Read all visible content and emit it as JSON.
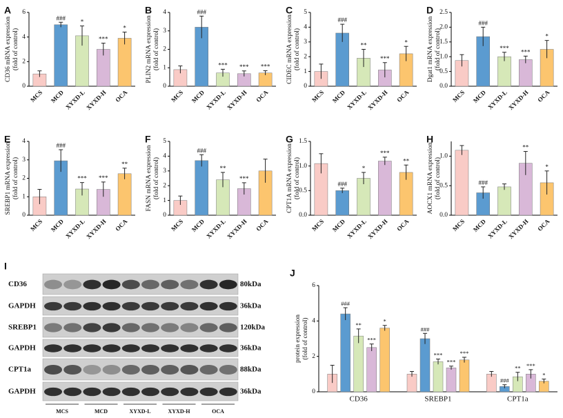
{
  "chart_data": [
    {
      "type": "bar",
      "panel": "A",
      "y_label": [
        "CD36 mRNA expression",
        "(fold of control)"
      ],
      "categories": [
        "MCS",
        "MCD",
        "XYXD-L",
        "XYXD-H",
        "OCA"
      ],
      "colors": [
        "#f9cbc6",
        "#5b9bd0",
        "#d6e8b8",
        "#d9b8d8",
        "#fcc56e"
      ],
      "values": [
        1.0,
        5.0,
        4.1,
        3.0,
        3.9
      ],
      "errors": [
        0.25,
        0.2,
        0.8,
        0.5,
        0.5
      ],
      "significance": [
        null,
        "###",
        "*",
        "***",
        "*"
      ],
      "ylim": [
        0,
        6
      ],
      "yticks": [
        0,
        2,
        4,
        6
      ]
    },
    {
      "type": "bar",
      "panel": "B",
      "y_label": [
        "PLIN2 mRNA expression",
        "(fold of control)"
      ],
      "categories": [
        "MCS",
        "MCD",
        "XYXD-L",
        "XYXD-H",
        "OCA"
      ],
      "colors": [
        "#f9cbc6",
        "#5b9bd0",
        "#d6e8b8",
        "#d9b8d8",
        "#fcc56e"
      ],
      "values": [
        0.9,
        3.2,
        0.72,
        0.68,
        0.72
      ],
      "errors": [
        0.2,
        0.6,
        0.2,
        0.15,
        0.12
      ],
      "significance": [
        null,
        "###",
        "***",
        "***",
        "***"
      ],
      "ylim": [
        0,
        4
      ],
      "yticks": [
        0,
        1,
        2,
        3,
        4
      ]
    },
    {
      "type": "bar",
      "panel": "C",
      "y_label": [
        "CIDEC mRNA expression",
        "(fold of control)"
      ],
      "categories": [
        "MCS",
        "MCD",
        "XYXD-L",
        "XYXD-H",
        "OCA"
      ],
      "colors": [
        "#f9cbc6",
        "#5b9bd0",
        "#d6e8b8",
        "#d9b8d8",
        "#fcc56e"
      ],
      "values": [
        1.0,
        3.6,
        1.9,
        1.1,
        2.2
      ],
      "errors": [
        0.5,
        0.6,
        0.6,
        0.5,
        0.5
      ],
      "significance": [
        null,
        "###",
        "**",
        "***",
        "*"
      ],
      "ylim": [
        0,
        5
      ],
      "yticks": [
        0,
        1,
        2,
        3,
        4,
        5
      ]
    },
    {
      "type": "bar",
      "panel": "D",
      "y_label": [
        "Dgat1 mRNA expression",
        "(fold of control)"
      ],
      "categories": [
        "MCS",
        "MCD",
        "XYXD-L",
        "XYXD-H",
        "OCA"
      ],
      "colors": [
        "#f9cbc6",
        "#5b9bd0",
        "#d6e8b8",
        "#d9b8d8",
        "#fcc56e"
      ],
      "values": [
        0.87,
        1.68,
        1.0,
        0.9,
        1.25
      ],
      "errors": [
        0.2,
        0.32,
        0.15,
        0.12,
        0.3
      ],
      "significance": [
        null,
        "###",
        "***",
        "***",
        "*"
      ],
      "ylim": [
        0,
        2.5
      ],
      "yticks": [
        {
          "value": 0,
          "label": "0.0"
        },
        0.5,
        {
          "value": 1,
          "label": "1.0"
        },
        1.5,
        {
          "value": 2,
          "label": "2.0"
        },
        2.5
      ]
    },
    {
      "type": "bar",
      "panel": "E",
      "y_label": [
        "SREBP1 mRNA expression",
        "(fold of control)"
      ],
      "categories": [
        "MCS",
        "MCD",
        "XYXD-L",
        "XYXD-H",
        "OCA"
      ],
      "colors": [
        "#f9cbc6",
        "#5b9bd0",
        "#d6e8b8",
        "#d9b8d8",
        "#fcc56e"
      ],
      "values": [
        1.0,
        2.95,
        1.42,
        1.4,
        2.25
      ],
      "errors": [
        0.4,
        0.6,
        0.35,
        0.4,
        0.3
      ],
      "significance": [
        null,
        "###",
        "***",
        "***",
        "**"
      ],
      "ylim": [
        0,
        4
      ],
      "yticks": [
        0,
        1,
        2,
        3,
        4
      ]
    },
    {
      "type": "bar",
      "panel": "F",
      "y_label": [
        "FASN mRNA expression",
        "(fold of control)"
      ],
      "categories": [
        "MCS",
        "MCD",
        "XYXD-L",
        "XYXD-H",
        "OCA"
      ],
      "colors": [
        "#f9cbc6",
        "#5b9bd0",
        "#d6e8b8",
        "#d9b8d8",
        "#fcc56e"
      ],
      "values": [
        1.0,
        3.7,
        2.4,
        1.8,
        3.0
      ],
      "errors": [
        0.3,
        0.4,
        0.5,
        0.4,
        0.8
      ],
      "significance": [
        null,
        "###",
        "**",
        "***",
        null
      ],
      "ylim": [
        0,
        5
      ],
      "yticks": [
        0,
        1,
        2,
        3,
        4,
        5
      ]
    },
    {
      "type": "bar",
      "panel": "G",
      "y_label": [
        "CPT1A mRNA expression",
        "(fold of control)"
      ],
      "categories": [
        "MCS",
        "MCD",
        "XYXD-L",
        "XYXD-H",
        "OCA"
      ],
      "colors": [
        "#f9cbc6",
        "#5b9bd0",
        "#d6e8b8",
        "#d9b8d8",
        "#fcc56e"
      ],
      "values": [
        1.05,
        0.5,
        0.75,
        1.1,
        0.87
      ],
      "errors": [
        0.2,
        0.05,
        0.12,
        0.08,
        0.15
      ],
      "significance": [
        null,
        "###",
        "*",
        "***",
        "**"
      ],
      "ylim": [
        0,
        1.5
      ],
      "yticks": [
        {
          "value": 0,
          "label": "0.0"
        },
        0.5,
        {
          "value": 1,
          "label": "1.0"
        },
        1.5
      ]
    },
    {
      "type": "bar",
      "panel": "H",
      "y_label": [
        "AOCX1 mRNA expression",
        "(fold of control)"
      ],
      "categories": [
        "MCS",
        "MCD",
        "XYXD-L",
        "XYXD-H",
        "OCA"
      ],
      "colors": [
        "#f9cbc6",
        "#5b9bd0",
        "#d6e8b8",
        "#d9b8d8",
        "#fcc56e"
      ],
      "values": [
        1.1,
        0.38,
        0.48,
        0.88,
        0.55
      ],
      "errors": [
        0.08,
        0.1,
        0.05,
        0.2,
        0.2
      ],
      "significance": [
        null,
        "###",
        null,
        "**",
        "*"
      ],
      "ylim": [
        0,
        1.25
      ],
      "yticks": [
        {
          "value": 0,
          "label": "0.0"
        },
        0.5,
        {
          "value": 1,
          "label": "1.0"
        }
      ]
    },
    {
      "type": "grouped_bar",
      "panel": "J",
      "y_label": [
        "protein expression",
        "(fold of control)"
      ],
      "categories": [
        "CD36",
        "SREBP1",
        "CPT1a"
      ],
      "ylim": [
        0,
        6
      ],
      "yticks": [
        0,
        2,
        4,
        6
      ],
      "series": [
        {
          "color": "#f9cbc6",
          "values": [
            1.0,
            1.0,
            1.0
          ],
          "errors": [
            0.5,
            0.15,
            0.15
          ],
          "significance": [
            null,
            null,
            null
          ]
        },
        {
          "color": "#5b9bd0",
          "values": [
            4.4,
            3.0,
            0.3
          ],
          "errors": [
            0.35,
            0.3,
            0.1
          ],
          "significance": [
            "###",
            "###",
            "###"
          ]
        },
        {
          "color": "#d6e8b8",
          "values": [
            3.15,
            1.7,
            0.85
          ],
          "errors": [
            0.4,
            0.15,
            0.25
          ],
          "significance": [
            "**",
            "***",
            "**"
          ]
        },
        {
          "color": "#d9b8d8",
          "values": [
            2.5,
            1.35,
            1.0
          ],
          "errors": [
            0.2,
            0.1,
            0.25
          ],
          "significance": [
            "***",
            "***",
            "***"
          ]
        },
        {
          "color": "#fcc56e",
          "values": [
            3.6,
            1.8,
            0.6
          ],
          "errors": [
            0.15,
            0.15,
            0.12
          ],
          "significance": [
            "*",
            "***",
            "*"
          ]
        }
      ]
    }
  ],
  "blot": {
    "panel": "I",
    "rows": [
      {
        "protein": "CD36",
        "size": "80kDa"
      },
      {
        "protein": "GAPDH",
        "size": "36kDa"
      },
      {
        "protein": "SREBP1",
        "size": "120kDa"
      },
      {
        "protein": "GAPDH",
        "size": "36kDa"
      },
      {
        "protein": "CPT1a",
        "size": "88kDa"
      },
      {
        "protein": "GAPDH",
        "size": "36kDa"
      }
    ],
    "lanes": [
      "MCS",
      "MCD",
      "XYXD-L",
      "XYXD-H",
      "OCA"
    ]
  }
}
